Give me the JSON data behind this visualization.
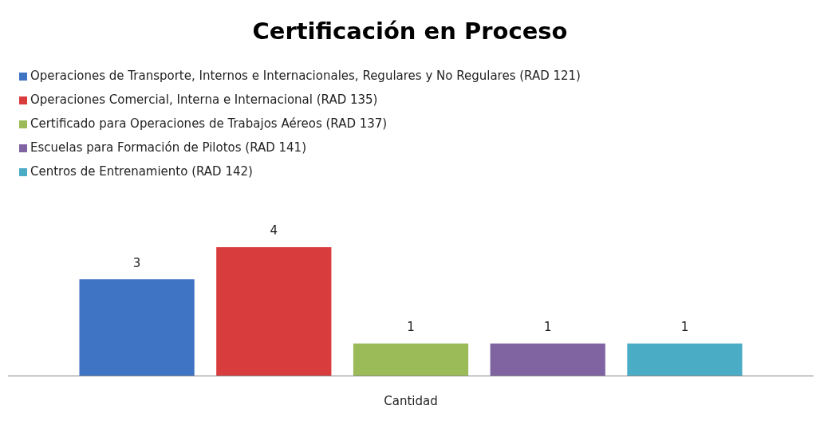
{
  "chart_data": {
    "type": "bar",
    "title": "Certificación en Proceso",
    "xlabel": "Cantidad",
    "categories": [
      null
    ],
    "series": [
      {
        "name": "Operaciones de Transporte, Internos e Internacionales,  Regulares y No Regulares (RAD 121)",
        "color": "#3f73c4",
        "values": [
          3
        ]
      },
      {
        "name": "Operaciones Comercial, Interna e Internacional (RAD 135)",
        "color": "#d83c3c",
        "values": [
          4
        ]
      },
      {
        "name": "Certificado para Operaciones de Trabajos Aéreos (RAD 137)",
        "color": "#9bbb59",
        "values": [
          1
        ]
      },
      {
        "name": "Escuelas para Formación de Pilotos (RAD 141)",
        "color": "#8064a2",
        "values": [
          1
        ]
      },
      {
        "name": "Centros de Entrenamiento (RAD 142)",
        "color": "#4bacc6",
        "values": [
          1
        ]
      }
    ],
    "data_labels": true,
    "legend": "top",
    "grid": false
  }
}
